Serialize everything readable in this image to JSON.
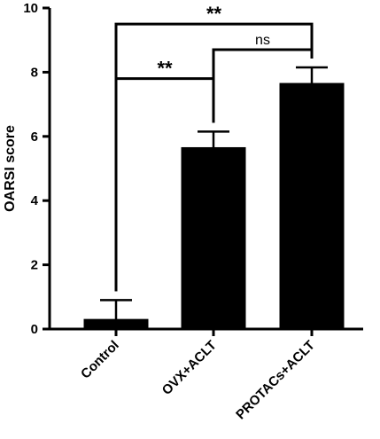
{
  "chart_data": {
    "type": "bar",
    "title": "",
    "xlabel": "",
    "ylabel": "OARSI score",
    "ylim": [
      0,
      10
    ],
    "yticks": [
      "0",
      "2",
      "4",
      "6",
      "8",
      "10"
    ],
    "categories": [
      "Control",
      "OVX+ACLT",
      "PROTACs+ACLT"
    ],
    "values": [
      0.3,
      5.65,
      7.65
    ],
    "errors": [
      0.6,
      0.5,
      0.5
    ],
    "bar_color": "#000000",
    "grid": false,
    "comparisons": [
      {
        "from": 0,
        "to": 1,
        "label": "**",
        "y": 7.8
      },
      {
        "from": 1,
        "to": 2,
        "label": "ns",
        "y": 8.7
      },
      {
        "from": 0,
        "to": 2,
        "label": "**",
        "y": 9.5
      }
    ]
  }
}
